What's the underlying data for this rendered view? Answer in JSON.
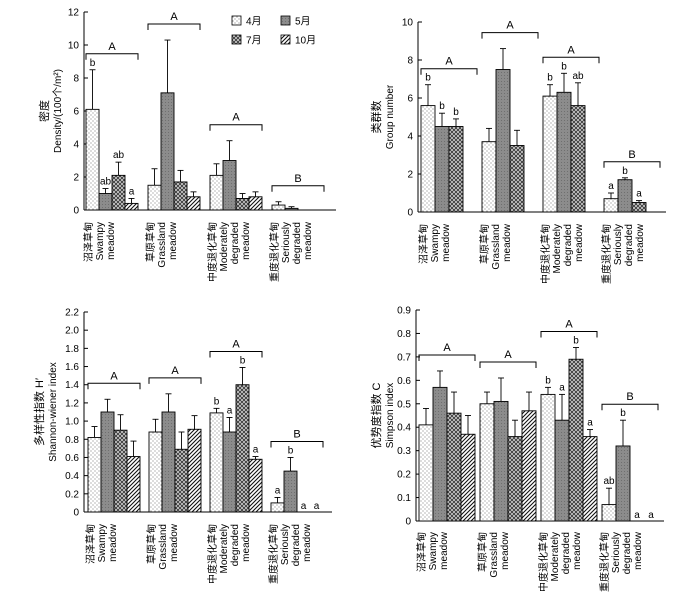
{
  "legend": {
    "items": [
      {
        "label": "4月",
        "pattern": "dots"
      },
      {
        "label": "5月",
        "pattern": "gray"
      },
      {
        "label": "7月",
        "pattern": "cross"
      },
      {
        "label": "10月",
        "pattern": "diag"
      }
    ]
  },
  "groups": [
    {
      "cn": "沼泽草甸",
      "en": [
        "Swampy",
        "meadow"
      ]
    },
    {
      "cn": "草原草甸",
      "en": [
        "Grassland",
        "meadow"
      ]
    },
    {
      "cn": "中度退化草甸",
      "en": [
        "Moderately",
        "degraded",
        "meadow"
      ]
    },
    {
      "cn": "重度退化草甸",
      "en": [
        "Seriously",
        "degraded",
        "meadow"
      ]
    }
  ],
  "chart_data": [
    {
      "type": "bar",
      "ylabel_cn": "密度",
      "ylabel_en": "Density/(100个/m²)",
      "ylim": [
        0,
        12
      ],
      "yticks": [
        "0",
        "2",
        "4",
        "6",
        "8",
        "10",
        "12"
      ],
      "series_names": [
        "4月",
        "5月",
        "7月",
        "10月"
      ],
      "values": [
        [
          6.1,
          1.0,
          2.1,
          0.4
        ],
        [
          1.5,
          7.1,
          1.7,
          0.8
        ],
        [
          2.1,
          3.0,
          0.7,
          0.8
        ],
        [
          0.3,
          0.1,
          0,
          0
        ]
      ],
      "errors": [
        [
          2.4,
          0.3,
          0.8,
          0.3
        ],
        [
          1.0,
          3.2,
          0.7,
          0.3
        ],
        [
          0.7,
          1.2,
          0.3,
          0.3
        ],
        [
          0.2,
          0.1,
          0,
          0
        ]
      ],
      "bar_letters": [
        [
          "b",
          "ab",
          "ab",
          "a"
        ],
        [
          "",
          "",
          "",
          ""
        ],
        [
          "",
          "",
          "",
          ""
        ],
        [
          "",
          "",
          "",
          ""
        ]
      ],
      "group_letters": [
        "A",
        "A",
        "A",
        "B"
      ]
    },
    {
      "type": "bar",
      "ylabel_cn": "类群数",
      "ylabel_en": "Group number",
      "ylim": [
        0,
        10
      ],
      "yticks": [
        "0",
        "2",
        "4",
        "6",
        "8",
        "10"
      ],
      "series_names": [
        "4月",
        "5月",
        "7月",
        "10月"
      ],
      "values": [
        [
          5.6,
          4.5,
          4.5,
          null
        ],
        [
          3.7,
          7.5,
          3.5,
          null
        ],
        [
          6.1,
          6.3,
          5.6,
          null
        ],
        [
          0.7,
          1.7,
          0.5,
          null
        ]
      ],
      "errors": [
        [
          1.1,
          0.7,
          0.4,
          0
        ],
        [
          0.7,
          1.1,
          0.8,
          0
        ],
        [
          0.6,
          1.0,
          1.2,
          0
        ],
        [
          0.3,
          0.1,
          0.1,
          0
        ]
      ],
      "bar_letters": [
        [
          "b",
          "b",
          "b",
          ""
        ],
        [
          "",
          "",
          "",
          ""
        ],
        [
          "b",
          "b",
          "ab",
          ""
        ],
        [
          "a",
          "b",
          "a",
          ""
        ]
      ],
      "group_letters": [
        "A",
        "A",
        "A",
        "B"
      ]
    },
    {
      "type": "bar",
      "ylabel_cn": "多样性指数 H′",
      "ylabel_en": "Shannon-wiener index",
      "ylim": [
        0,
        2.2
      ],
      "yticks": [
        "0",
        "0.2",
        "0.4",
        "0.6",
        "0.8",
        "1.0",
        "1.2",
        "1.4",
        "1.6",
        "1.8",
        "2.0",
        "2.2"
      ],
      "series_names": [
        "4月",
        "5月",
        "7月",
        "10月"
      ],
      "values": [
        [
          0.82,
          1.1,
          0.9,
          0.61
        ],
        [
          0.88,
          1.1,
          0.69,
          0.91
        ],
        [
          1.09,
          0.88,
          1.4,
          0.58
        ],
        [
          0.1,
          0.45,
          0,
          0
        ]
      ],
      "errors": [
        [
          0.12,
          0.14,
          0.17,
          0.17
        ],
        [
          0.14,
          0.2,
          0.19,
          0.15
        ],
        [
          0.05,
          0.16,
          0.19,
          0.03
        ],
        [
          0.06,
          0.15,
          0,
          0
        ]
      ],
      "bar_letters": [
        [
          "",
          "",
          "",
          ""
        ],
        [
          "",
          "",
          "",
          ""
        ],
        [
          "b",
          "a",
          "b",
          "a"
        ],
        [
          "a",
          "b",
          "a",
          "a"
        ]
      ],
      "group_letters": [
        "A",
        "A",
        "A",
        "B"
      ]
    },
    {
      "type": "bar",
      "ylabel_cn": "优势度指数 C",
      "ylabel_en": "Simpson index",
      "ylim": [
        0,
        0.9
      ],
      "yticks": [
        "0",
        "0.1",
        "0.2",
        "0.3",
        "0.4",
        "0.5",
        "0.6",
        "0.7",
        "0.8",
        "0.9"
      ],
      "series_names": [
        "4月",
        "5月",
        "7月",
        "10月"
      ],
      "values": [
        [
          0.41,
          0.57,
          0.46,
          0.37
        ],
        [
          0.5,
          0.51,
          0.36,
          0.47
        ],
        [
          0.54,
          0.43,
          0.69,
          0.36
        ],
        [
          0.07,
          0.32,
          0,
          0
        ]
      ],
      "errors": [
        [
          0.07,
          0.07,
          0.09,
          0.08
        ],
        [
          0.05,
          0.1,
          0.07,
          0.08
        ],
        [
          0.03,
          0.11,
          0.05,
          0.03
        ],
        [
          0.07,
          0.11,
          0,
          0
        ]
      ],
      "bar_letters": [
        [
          "",
          "",
          "",
          ""
        ],
        [
          "",
          "",
          "",
          ""
        ],
        [
          "b",
          "a",
          "b",
          "a"
        ],
        [
          "ab",
          "b",
          "a",
          "a"
        ]
      ],
      "group_letters": [
        "A",
        "A",
        "A",
        "B"
      ]
    }
  ]
}
